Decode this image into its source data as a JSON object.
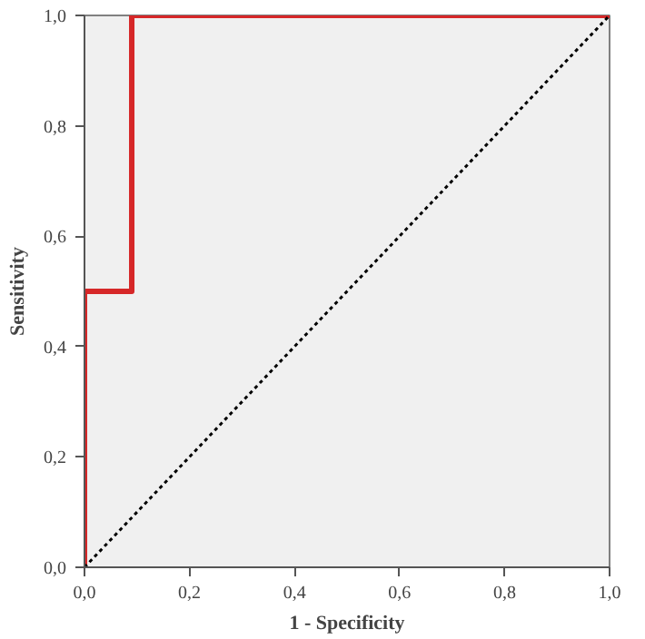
{
  "chart_data": {
    "type": "line",
    "xlabel": "1 - Specificity",
    "ylabel": "Sensitivity",
    "xlim": [
      0,
      1
    ],
    "ylim": [
      0,
      1
    ],
    "xticks": [
      {
        "value": 0,
        "label": "0,0"
      },
      {
        "value": 0.2,
        "label": "0,2"
      },
      {
        "value": 0.4,
        "label": "0,4"
      },
      {
        "value": 0.6,
        "label": "0,6"
      },
      {
        "value": 0.8,
        "label": "0,8"
      },
      {
        "value": 1,
        "label": "1,0"
      }
    ],
    "yticks": [
      {
        "value": 0,
        "label": "0,0"
      },
      {
        "value": 0.2,
        "label": "0,2"
      },
      {
        "value": 0.4,
        "label": "0,4"
      },
      {
        "value": 0.6,
        "label": "0,6"
      },
      {
        "value": 0.8,
        "label": "0,8"
      },
      {
        "value": 1,
        "label": "1,0"
      }
    ],
    "grid": false,
    "marker": "none",
    "series": [
      {
        "color": "#d62728",
        "x": [
          0,
          0,
          0.09,
          0.09,
          1
        ],
        "values": [
          0,
          0.5,
          0.5,
          1,
          1
        ],
        "line_style": "solid"
      },
      {
        "color": "#000000",
        "x": [
          0,
          1
        ],
        "values": [
          0,
          1
        ],
        "line_style": "dotted"
      }
    ]
  }
}
